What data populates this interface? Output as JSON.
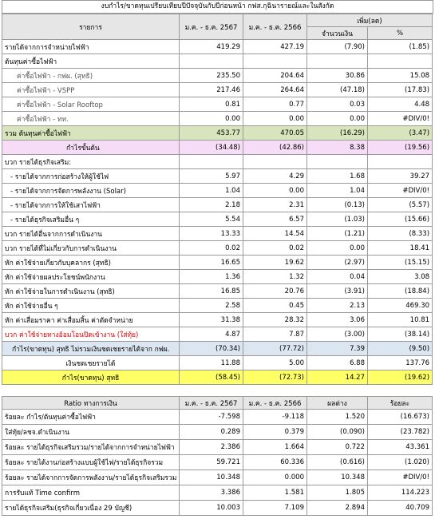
{
  "title": "งบกำไร/ขาดทุนเปรียบเทียบปีปัจจุบันกับปีก่อนหน้า กฟส.กุฉินารายณ์และในสังกัด",
  "table": {
    "header": [
      "รายการ",
      "ม.ค. - ธ.ค. 2567",
      "ม.ค. - ธ.ค. 2566",
      "เพิ่ม(ลด)"
    ],
    "subheader": [
      "จำนวนเงิน",
      "%"
    ],
    "rows": [
      [
        "รายได้จากการจำหน่ายไฟฟ้า",
        "419.29",
        "427.19",
        "(7.90)",
        "(1.85)"
      ],
      [
        "ต้นทุนค่าซื้อไฟฟ้า"
      ],
      [
        "ค่าซื้อไฟฟ้า - กฟผ. (สุทธิ)",
        "235.50",
        "204.64",
        "30.86",
        "15.08"
      ],
      [
        "ค่าซื้อไฟฟ้า - VSPP",
        "217.46",
        "264.64",
        "(47.18)",
        "(17.83)"
      ],
      [
        "ค่าซื้อไฟฟ้า - Solar Rooftop",
        "0.81",
        "0.77",
        "0.03",
        "4.48"
      ],
      [
        "ค่าซื้อไฟฟ้า - ทท.",
        "0.00",
        "0.00",
        "0.00",
        "#DIV/0!"
      ],
      [
        "รวม ต้นทุนค่าซื้อไฟฟ้า",
        "453.77",
        "470.05",
        "(16.29)",
        "(3.47)"
      ],
      [
        "กำไรขั้นต้น",
        "(34.48)",
        "(42.86)",
        "8.38",
        "(19.56)"
      ],
      [
        "บวก รายได้ธุรกิจเสริม:"
      ],
      [
        "- รายได้จากการก่อสร้างให้ผู้ใช้ไฟ",
        "5.97",
        "4.29",
        "1.68",
        "39.27"
      ],
      [
        "- รายได้จากการจัดการพลังงาน (Solar)",
        "1.04",
        "0.00",
        "1.04",
        "#DIV/0!"
      ],
      [
        "- รายได้จากการให้ใช้เสาไฟฟ้า",
        "2.18",
        "2.31",
        "(0.13)",
        "(5.57)"
      ],
      [
        "- รายได้ธุรกิจเสริมอื่น ๆ",
        "5.54",
        "6.57",
        "(1.03)",
        "(15.66)"
      ],
      [
        "บวก รายได้อื่นจากการดำเนินงาน",
        "13.33",
        "14.54",
        "(1.21)",
        "(8.33)"
      ],
      [
        "บวก รายได้ที่ไม่เกี่ยวกับการดำเนินงาน",
        "0.02",
        "0.02",
        "0.00",
        "18.41"
      ],
      [
        "หัก ค่าใช้จ่ายเกี่ยวกับบุคลากร (สุทธิ)",
        "16.65",
        "19.62",
        "(2.97)",
        "(15.15)"
      ],
      [
        "หัก ค่าใช้จ่ายผลประโยชน์พนักงาน",
        "1.36",
        "1.32",
        "0.04",
        "3.08"
      ],
      [
        "หัก ค่าใช้จ่ายในการดำเนินงาน (สุทธิ)",
        "16.85",
        "20.76",
        "(3.91)",
        "(18.84)"
      ],
      [
        "หัก ค่าใช้จ่ายอื่น ๆ",
        "2.58",
        "0.45",
        "2.13",
        "469.30"
      ],
      [
        "หัก ค่าเสื่อมราคา ค่าเสื่อมสิ้น ค่าตัดจำหน่าย",
        "31.38",
        "28.32",
        "3.06",
        "10.81"
      ],
      [
        "บวก ค่าใช้จ่ายทางอ้อมโอนปิดเข้างาน (ใส่ทุ้ย)",
        "4.87",
        "7.87",
        "(3.00)",
        "(38.14)"
      ],
      [
        "กำไร(ขาดทุน) สุทธิ ไม่รวมเงินชดเชยรายได้จาก กฟผ.",
        "(70.34)",
        "(77.72)",
        "7.39",
        "(9.50)"
      ],
      [
        "เงินชดเชยรายได้",
        "11.88",
        "5.00",
        "6.88",
        "137.76"
      ],
      [
        "กำไร(ขาดทุน) สุทธิ",
        "(58.45)",
        "(72.73)",
        "14.27",
        "(19.62)"
      ]
    ]
  },
  "ratio_table": {
    "header": [
      "Ratio ทางการเงิน",
      "ม.ค. - ธ.ค. 2567",
      "ม.ค. - ธ.ค. 2566",
      "ผลต่าง",
      "ร้อยละ"
    ],
    "rows": [
      [
        "ร้อยละ กำไร/ต้นทุนค่าซื้อไฟฟ้า",
        "-7.598",
        "-9.118",
        "1.520",
        "(16.673)"
      ],
      [
        "ใส่ทุ้ย/ลชจ.ดำเนินงาน",
        "0.289",
        "0.379",
        "(0.090)",
        "(23.782)"
      ],
      [
        "ร้อยละ รายได้ธุรกิจเสริมรวม/รายได้จากการจำหน่ายไฟฟ้า",
        "2.386",
        "1.664",
        "0.722",
        "43.361"
      ],
      [
        "ร้อยละ รายได้งานก่อสร้างแบบผู้ใช้ไฟ/รายได้ธุรกิจรวม",
        "59.721",
        "60.336",
        "(0.616)",
        "(1.020)"
      ],
      [
        "ร้อยละ รายได้จากการจัดการพลังงาน/รายได้ธุรกิจเสริมรวม",
        "10.348",
        "0.000",
        "10.348",
        "#DIV/0!"
      ],
      [
        "การรับแท้ Time confirm",
        "3.386",
        "1.581",
        "1.805",
        "114.223"
      ],
      [
        "รายได้ธุรกิจเสริม(ธุรกิจเกี่ยวเนื่อง 29 บัญชี)",
        "10.003",
        "7.109",
        "2.894",
        "40.709"
      ]
    ]
  }
}
